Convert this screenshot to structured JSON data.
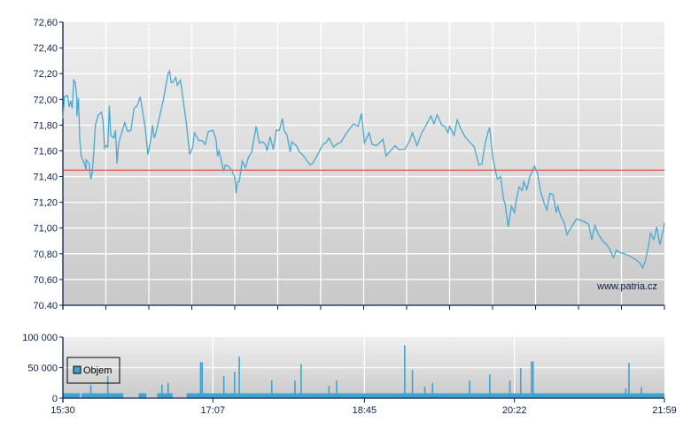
{
  "chart_data": [
    {
      "type": "line",
      "title": "",
      "xlabel": "",
      "ylabel": "",
      "xlim": [
        "15:30",
        "21:59"
      ],
      "ylim": [
        70.4,
        72.6
      ],
      "y_ticks": [
        "72,60",
        "72,40",
        "72,20",
        "72,00",
        "71,80",
        "71,60",
        "71,40",
        "71,20",
        "71,00",
        "70,80",
        "70,60",
        "70.40"
      ],
      "grid": true,
      "line_color": "#4aa8d0",
      "reference_line": {
        "value": 71.45,
        "color": "#e03030"
      },
      "watermark": "www.patria.cz",
      "series": [
        {
          "points": [
            [
              "15:30",
              71.85
            ],
            [
              "15:31",
              72.02
            ],
            [
              "15:33",
              72.03
            ],
            [
              "15:34",
              71.94
            ],
            [
              "15:35",
              71.99
            ],
            [
              "15:36",
              71.93
            ],
            [
              "15:37",
              72.15
            ],
            [
              "15:38",
              72.13
            ],
            [
              "15:39",
              72.01
            ],
            [
              "15:39",
              71.87
            ],
            [
              "15:40",
              72.01
            ],
            [
              "15:41",
              71.67
            ],
            [
              "15:42",
              71.55
            ],
            [
              "15:44",
              71.5
            ],
            [
              "15:45",
              71.45
            ],
            [
              "15:45",
              71.53
            ],
            [
              "15:47",
              71.5
            ],
            [
              "15:48",
              71.38
            ],
            [
              "15:49",
              71.43
            ],
            [
              "15:50",
              71.6
            ],
            [
              "15:51",
              71.8
            ],
            [
              "15:53",
              71.88
            ],
            [
              "15:55",
              71.9
            ],
            [
              "15:56",
              71.82
            ],
            [
              "15:57",
              71.62
            ],
            [
              "15:58",
              71.64
            ],
            [
              "15:59",
              71.63
            ],
            [
              "16:00",
              71.95
            ],
            [
              "16:01",
              71.72
            ],
            [
              "16:03",
              71.7
            ],
            [
              "16:04",
              71.76
            ],
            [
              "16:05",
              71.5
            ],
            [
              "16:06",
              71.65
            ],
            [
              "16:07",
              71.7
            ],
            [
              "16:10",
              71.82
            ],
            [
              "16:12",
              71.75
            ],
            [
              "16:14",
              71.76
            ],
            [
              "16:16",
              71.93
            ],
            [
              "16:18",
              71.95
            ],
            [
              "16:20",
              72.02
            ],
            [
              "16:23",
              71.8
            ],
            [
              "16:25",
              71.57
            ],
            [
              "16:27",
              71.7
            ],
            [
              "16:28",
              71.8
            ],
            [
              "16:29",
              71.7
            ],
            [
              "16:30",
              71.73
            ],
            [
              "16:35",
              72.0
            ],
            [
              "16:38",
              72.2
            ],
            [
              "16:39",
              72.22
            ],
            [
              "16:40",
              72.13
            ],
            [
              "16:41",
              72.13
            ],
            [
              "16:43",
              72.17
            ],
            [
              "16:44",
              72.11
            ],
            [
              "16:46",
              72.15
            ],
            [
              "16:50",
              71.8
            ],
            [
              "16:52",
              71.57
            ],
            [
              "16:54",
              71.63
            ],
            [
              "16:55",
              71.74
            ],
            [
              "16:58",
              71.68
            ],
            [
              "17:00",
              71.68
            ],
            [
              "17:02",
              71.65
            ],
            [
              "17:04",
              71.75
            ],
            [
              "17:07",
              71.76
            ],
            [
              "17:09",
              71.69
            ],
            [
              "17:10",
              71.56
            ],
            [
              "17:11",
              71.6
            ],
            [
              "17:14",
              71.44
            ],
            [
              "17:15",
              71.49
            ],
            [
              "17:17",
              71.48
            ],
            [
              "17:19",
              71.45
            ],
            [
              "17:21",
              71.4
            ],
            [
              "17:22",
              71.27
            ],
            [
              "17:23",
              71.36
            ],
            [
              "17:24",
              71.36
            ],
            [
              "17:26",
              71.52
            ],
            [
              "17:28",
              71.47
            ],
            [
              "17:30",
              71.55
            ],
            [
              "17:32",
              71.59
            ],
            [
              "17:35",
              71.79
            ],
            [
              "17:37",
              71.66
            ],
            [
              "17:39",
              71.67
            ],
            [
              "17:41",
              71.65
            ],
            [
              "17:42",
              71.6
            ],
            [
              "17:44",
              71.71
            ],
            [
              "17:46",
              71.61
            ],
            [
              "17:48",
              71.76
            ],
            [
              "17:50",
              71.76
            ],
            [
              "17:52",
              71.85
            ],
            [
              "17:53",
              71.76
            ],
            [
              "17:55",
              71.72
            ],
            [
              "17:57",
              71.59
            ],
            [
              "17:58",
              71.67
            ],
            [
              "18:01",
              71.64
            ],
            [
              "18:03",
              71.59
            ],
            [
              "18:05",
              71.57
            ],
            [
              "18:08",
              71.52
            ],
            [
              "18:10",
              71.49
            ],
            [
              "18:12",
              71.51
            ],
            [
              "18:16",
              71.6
            ],
            [
              "18:18",
              71.65
            ],
            [
              "18:20",
              71.66
            ],
            [
              "18:22",
              71.7
            ],
            [
              "18:25",
              71.63
            ],
            [
              "18:27",
              71.65
            ],
            [
              "18:30",
              71.67
            ],
            [
              "18:33",
              71.73
            ],
            [
              "18:36",
              71.78
            ],
            [
              "18:38",
              71.81
            ],
            [
              "18:41",
              71.79
            ],
            [
              "18:43",
              71.89
            ],
            [
              "18:44",
              71.79
            ],
            [
              "18:45",
              71.66
            ],
            [
              "18:48",
              71.74
            ],
            [
              "18:50",
              71.65
            ],
            [
              "18:53",
              71.64
            ],
            [
              "18:57",
              71.69
            ],
            [
              "18:59",
              71.56
            ],
            [
              "19:01",
              71.59
            ],
            [
              "19:05",
              71.64
            ],
            [
              "19:07",
              71.61
            ],
            [
              "19:11",
              71.61
            ],
            [
              "19:14",
              71.67
            ],
            [
              "19:16",
              71.74
            ],
            [
              "19:19",
              71.64
            ],
            [
              "19:22",
              71.74
            ],
            [
              "19:24",
              71.78
            ],
            [
              "19:28",
              71.87
            ],
            [
              "19:30",
              71.81
            ],
            [
              "19:32",
              71.88
            ],
            [
              "19:35",
              71.8
            ],
            [
              "19:37",
              71.79
            ],
            [
              "19:39",
              71.74
            ],
            [
              "19:40",
              71.79
            ],
            [
              "19:43",
              71.72
            ],
            [
              "19:45",
              71.84
            ],
            [
              "19:47",
              71.78
            ],
            [
              "19:50",
              71.71
            ],
            [
              "19:53",
              71.67
            ],
            [
              "19:56",
              71.63
            ],
            [
              "19:59",
              71.49
            ],
            [
              "20:01",
              71.5
            ],
            [
              "20:03",
              71.65
            ],
            [
              "20:05",
              71.75
            ],
            [
              "20:06",
              71.78
            ],
            [
              "20:08",
              71.55
            ],
            [
              "20:10",
              71.43
            ],
            [
              "20:11",
              71.38
            ],
            [
              "20:13",
              71.4
            ],
            [
              "20:15",
              71.22
            ],
            [
              "20:16",
              71.19
            ],
            [
              "20:18",
              71.01
            ],
            [
              "20:20",
              71.17
            ],
            [
              "20:22",
              71.12
            ],
            [
              "20:23",
              71.2
            ],
            [
              "20:25",
              71.32
            ],
            [
              "20:27",
              71.29
            ],
            [
              "20:28",
              71.36
            ],
            [
              "20:30",
              71.3
            ],
            [
              "20:32",
              71.4
            ],
            [
              "20:35",
              71.48
            ],
            [
              "20:37",
              71.42
            ],
            [
              "20:39",
              71.28
            ],
            [
              "20:41",
              71.2
            ],
            [
              "20:43",
              71.14
            ],
            [
              "20:45",
              71.27
            ],
            [
              "20:47",
              71.26
            ],
            [
              "20:49",
              71.12
            ],
            [
              "20:50",
              71.17
            ],
            [
              "20:52",
              71.09
            ],
            [
              "20:54",
              71.05
            ],
            [
              "20:56",
              70.95
            ],
            [
              "20:59",
              71.01
            ],
            [
              "21:02",
              71.07
            ],
            [
              "21:05",
              71.06
            ],
            [
              "21:07",
              71.05
            ],
            [
              "21:10",
              71.03
            ],
            [
              "21:12",
              70.91
            ],
            [
              "21:14",
              71.02
            ],
            [
              "21:16",
              70.96
            ],
            [
              "21:19",
              70.9
            ],
            [
              "21:21",
              70.88
            ],
            [
              "21:23",
              70.85
            ],
            [
              "21:26",
              70.77
            ],
            [
              "21:28",
              70.83
            ],
            [
              "21:30",
              70.81
            ],
            [
              "21:33",
              70.8
            ],
            [
              "21:35",
              70.79
            ],
            [
              "21:37",
              70.78
            ],
            [
              "21:41",
              70.75
            ],
            [
              "21:43",
              70.73
            ],
            [
              "21:45",
              70.69
            ],
            [
              "21:47",
              70.76
            ],
            [
              "21:49",
              70.88
            ],
            [
              "21:50",
              70.96
            ],
            [
              "21:52",
              70.91
            ],
            [
              "21:53",
              70.95
            ],
            [
              "21:54",
              71.01
            ],
            [
              "21:56",
              70.87
            ],
            [
              "21:58",
              70.97
            ],
            [
              "21:59",
              71.04
            ]
          ]
        }
      ]
    },
    {
      "type": "bar",
      "title": "",
      "xlabel": "",
      "ylabel": "",
      "xlim": [
        "15:30",
        "21:59"
      ],
      "ylim": [
        0,
        100000
      ],
      "y_ticks": [
        "100 000",
        "50 000",
        "0"
      ],
      "x_ticks": [
        "15:30",
        "17:07",
        "18:45",
        "20:22",
        "21:59"
      ],
      "grid": true,
      "bar_color": "#3fa3cf",
      "legend": {
        "placement": "left",
        "entries": [
          "Objem"
        ]
      },
      "series": [
        {
          "name": "Objem",
          "baseline_volume": 8000,
          "baseline_gaps": [
            [
              "15:41",
              "15:42"
            ],
            [
              "16:09",
              "16:19"
            ],
            [
              "16:24",
              "16:31"
            ],
            [
              "16:41",
              "16:50"
            ]
          ],
          "spikes": [
            [
              "15:48",
              22000
            ],
            [
              "15:59",
              36000
            ],
            [
              "16:34",
              22000
            ],
            [
              "16:38",
              25000
            ],
            [
              "16:59",
              59000
            ],
            [
              "17:00",
              59000
            ],
            [
              "17:14",
              36000
            ],
            [
              "17:21",
              43000
            ],
            [
              "17:24",
              68000
            ],
            [
              "17:45",
              29000
            ],
            [
              "18:00",
              29000
            ],
            [
              "18:04",
              56000
            ],
            [
              "18:22",
              20000
            ],
            [
              "18:27",
              29000
            ],
            [
              "19:11",
              86500
            ],
            [
              "19:16",
              46000
            ],
            [
              "19:24",
              19000
            ],
            [
              "19:29",
              25000
            ],
            [
              "19:53",
              29000
            ],
            [
              "20:06",
              39000
            ],
            [
              "20:19",
              29000
            ],
            [
              "20:26",
              49000
            ],
            [
              "20:33",
              60000
            ],
            [
              "20:34",
              60000
            ],
            [
              "21:34",
              16000
            ],
            [
              "21:36",
              57700
            ],
            [
              "21:44",
              18000
            ]
          ]
        }
      ]
    }
  ]
}
